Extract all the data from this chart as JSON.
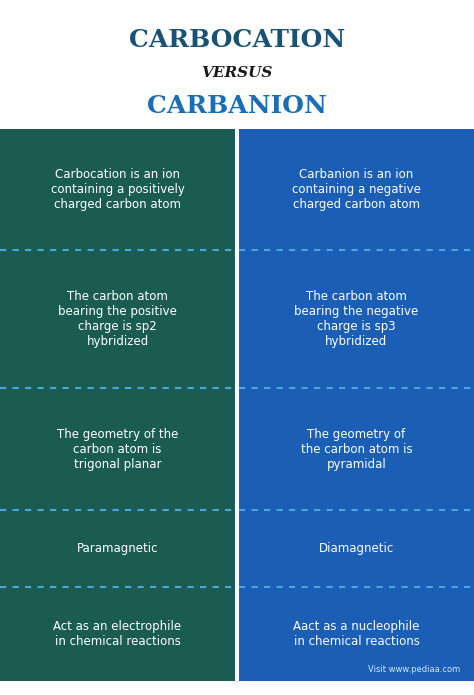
{
  "title1": "CARBOCATION",
  "title2": "VERSUS",
  "title3": "CARBANION",
  "title1_color": "#1a5276",
  "title2_color": "#1a1a1a",
  "title3_color": "#1a6eb5",
  "left_color": "#1a5c52",
  "right_color": "#1a5eb5",
  "divider_color": "#4aa8d8",
  "text_color": "#ffffff",
  "watermark": "Visit www.pediaa.com",
  "rows": [
    {
      "left": "Carbocation is an ion\ncontaining a positively\ncharged carbon atom",
      "right": "Carbanion is an ion\ncontaining a negative\ncharged carbon atom"
    },
    {
      "left": "The carbon atom\nbearing the positive\ncharge is sp2\nhybridized",
      "right": "The carbon atom\nbearing the negative\ncharge is sp3\nhybridized"
    },
    {
      "left": "The geometry of the\ncarbon atom is\ntrigonal planar",
      "right": "The geometry of\nthe carbon atom is\npyramidal"
    },
    {
      "left": "Paramagnetic",
      "right": "Diamagnetic"
    },
    {
      "left": "Act as an electrophile\nin chemical reactions",
      "right": "Aact as a nucleophile\nin chemical reactions"
    }
  ],
  "fig_width": 4.74,
  "fig_height": 6.95,
  "dpi": 100
}
